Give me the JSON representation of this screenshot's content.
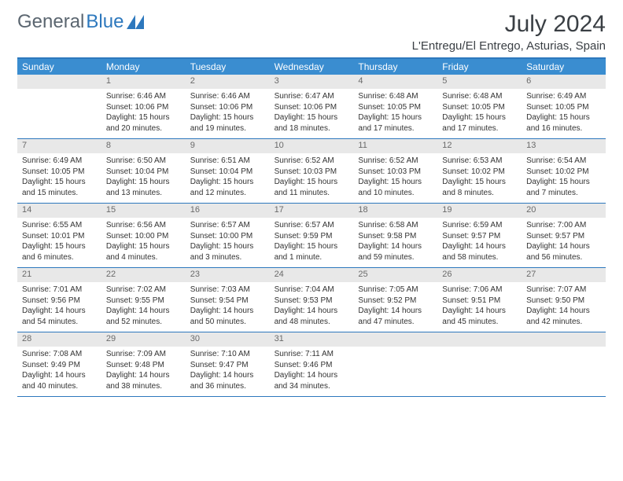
{
  "logo": {
    "part1": "General",
    "part2": "Blue"
  },
  "title": "July 2024",
  "location": "L'Entregu/El Entrego, Asturias, Spain",
  "colors": {
    "header_bg": "#3a8dd0",
    "border": "#2d78bd",
    "daynum_bg": "#e8e8e8",
    "text": "#333333"
  },
  "day_names": [
    "Sunday",
    "Monday",
    "Tuesday",
    "Wednesday",
    "Thursday",
    "Friday",
    "Saturday"
  ],
  "weeks": [
    [
      {
        "n": "",
        "sr": "",
        "ss": "",
        "d1": "",
        "d2": ""
      },
      {
        "n": "1",
        "sr": "Sunrise: 6:46 AM",
        "ss": "Sunset: 10:06 PM",
        "d1": "Daylight: 15 hours",
        "d2": "and 20 minutes."
      },
      {
        "n": "2",
        "sr": "Sunrise: 6:46 AM",
        "ss": "Sunset: 10:06 PM",
        "d1": "Daylight: 15 hours",
        "d2": "and 19 minutes."
      },
      {
        "n": "3",
        "sr": "Sunrise: 6:47 AM",
        "ss": "Sunset: 10:06 PM",
        "d1": "Daylight: 15 hours",
        "d2": "and 18 minutes."
      },
      {
        "n": "4",
        "sr": "Sunrise: 6:48 AM",
        "ss": "Sunset: 10:05 PM",
        "d1": "Daylight: 15 hours",
        "d2": "and 17 minutes."
      },
      {
        "n": "5",
        "sr": "Sunrise: 6:48 AM",
        "ss": "Sunset: 10:05 PM",
        "d1": "Daylight: 15 hours",
        "d2": "and 17 minutes."
      },
      {
        "n": "6",
        "sr": "Sunrise: 6:49 AM",
        "ss": "Sunset: 10:05 PM",
        "d1": "Daylight: 15 hours",
        "d2": "and 16 minutes."
      }
    ],
    [
      {
        "n": "7",
        "sr": "Sunrise: 6:49 AM",
        "ss": "Sunset: 10:05 PM",
        "d1": "Daylight: 15 hours",
        "d2": "and 15 minutes."
      },
      {
        "n": "8",
        "sr": "Sunrise: 6:50 AM",
        "ss": "Sunset: 10:04 PM",
        "d1": "Daylight: 15 hours",
        "d2": "and 13 minutes."
      },
      {
        "n": "9",
        "sr": "Sunrise: 6:51 AM",
        "ss": "Sunset: 10:04 PM",
        "d1": "Daylight: 15 hours",
        "d2": "and 12 minutes."
      },
      {
        "n": "10",
        "sr": "Sunrise: 6:52 AM",
        "ss": "Sunset: 10:03 PM",
        "d1": "Daylight: 15 hours",
        "d2": "and 11 minutes."
      },
      {
        "n": "11",
        "sr": "Sunrise: 6:52 AM",
        "ss": "Sunset: 10:03 PM",
        "d1": "Daylight: 15 hours",
        "d2": "and 10 minutes."
      },
      {
        "n": "12",
        "sr": "Sunrise: 6:53 AM",
        "ss": "Sunset: 10:02 PM",
        "d1": "Daylight: 15 hours",
        "d2": "and 8 minutes."
      },
      {
        "n": "13",
        "sr": "Sunrise: 6:54 AM",
        "ss": "Sunset: 10:02 PM",
        "d1": "Daylight: 15 hours",
        "d2": "and 7 minutes."
      }
    ],
    [
      {
        "n": "14",
        "sr": "Sunrise: 6:55 AM",
        "ss": "Sunset: 10:01 PM",
        "d1": "Daylight: 15 hours",
        "d2": "and 6 minutes."
      },
      {
        "n": "15",
        "sr": "Sunrise: 6:56 AM",
        "ss": "Sunset: 10:00 PM",
        "d1": "Daylight: 15 hours",
        "d2": "and 4 minutes."
      },
      {
        "n": "16",
        "sr": "Sunrise: 6:57 AM",
        "ss": "Sunset: 10:00 PM",
        "d1": "Daylight: 15 hours",
        "d2": "and 3 minutes."
      },
      {
        "n": "17",
        "sr": "Sunrise: 6:57 AM",
        "ss": "Sunset: 9:59 PM",
        "d1": "Daylight: 15 hours",
        "d2": "and 1 minute."
      },
      {
        "n": "18",
        "sr": "Sunrise: 6:58 AM",
        "ss": "Sunset: 9:58 PM",
        "d1": "Daylight: 14 hours",
        "d2": "and 59 minutes."
      },
      {
        "n": "19",
        "sr": "Sunrise: 6:59 AM",
        "ss": "Sunset: 9:57 PM",
        "d1": "Daylight: 14 hours",
        "d2": "and 58 minutes."
      },
      {
        "n": "20",
        "sr": "Sunrise: 7:00 AM",
        "ss": "Sunset: 9:57 PM",
        "d1": "Daylight: 14 hours",
        "d2": "and 56 minutes."
      }
    ],
    [
      {
        "n": "21",
        "sr": "Sunrise: 7:01 AM",
        "ss": "Sunset: 9:56 PM",
        "d1": "Daylight: 14 hours",
        "d2": "and 54 minutes."
      },
      {
        "n": "22",
        "sr": "Sunrise: 7:02 AM",
        "ss": "Sunset: 9:55 PM",
        "d1": "Daylight: 14 hours",
        "d2": "and 52 minutes."
      },
      {
        "n": "23",
        "sr": "Sunrise: 7:03 AM",
        "ss": "Sunset: 9:54 PM",
        "d1": "Daylight: 14 hours",
        "d2": "and 50 minutes."
      },
      {
        "n": "24",
        "sr": "Sunrise: 7:04 AM",
        "ss": "Sunset: 9:53 PM",
        "d1": "Daylight: 14 hours",
        "d2": "and 48 minutes."
      },
      {
        "n": "25",
        "sr": "Sunrise: 7:05 AM",
        "ss": "Sunset: 9:52 PM",
        "d1": "Daylight: 14 hours",
        "d2": "and 47 minutes."
      },
      {
        "n": "26",
        "sr": "Sunrise: 7:06 AM",
        "ss": "Sunset: 9:51 PM",
        "d1": "Daylight: 14 hours",
        "d2": "and 45 minutes."
      },
      {
        "n": "27",
        "sr": "Sunrise: 7:07 AM",
        "ss": "Sunset: 9:50 PM",
        "d1": "Daylight: 14 hours",
        "d2": "and 42 minutes."
      }
    ],
    [
      {
        "n": "28",
        "sr": "Sunrise: 7:08 AM",
        "ss": "Sunset: 9:49 PM",
        "d1": "Daylight: 14 hours",
        "d2": "and 40 minutes."
      },
      {
        "n": "29",
        "sr": "Sunrise: 7:09 AM",
        "ss": "Sunset: 9:48 PM",
        "d1": "Daylight: 14 hours",
        "d2": "and 38 minutes."
      },
      {
        "n": "30",
        "sr": "Sunrise: 7:10 AM",
        "ss": "Sunset: 9:47 PM",
        "d1": "Daylight: 14 hours",
        "d2": "and 36 minutes."
      },
      {
        "n": "31",
        "sr": "Sunrise: 7:11 AM",
        "ss": "Sunset: 9:46 PM",
        "d1": "Daylight: 14 hours",
        "d2": "and 34 minutes."
      },
      {
        "n": "",
        "sr": "",
        "ss": "",
        "d1": "",
        "d2": ""
      },
      {
        "n": "",
        "sr": "",
        "ss": "",
        "d1": "",
        "d2": ""
      },
      {
        "n": "",
        "sr": "",
        "ss": "",
        "d1": "",
        "d2": ""
      }
    ]
  ]
}
